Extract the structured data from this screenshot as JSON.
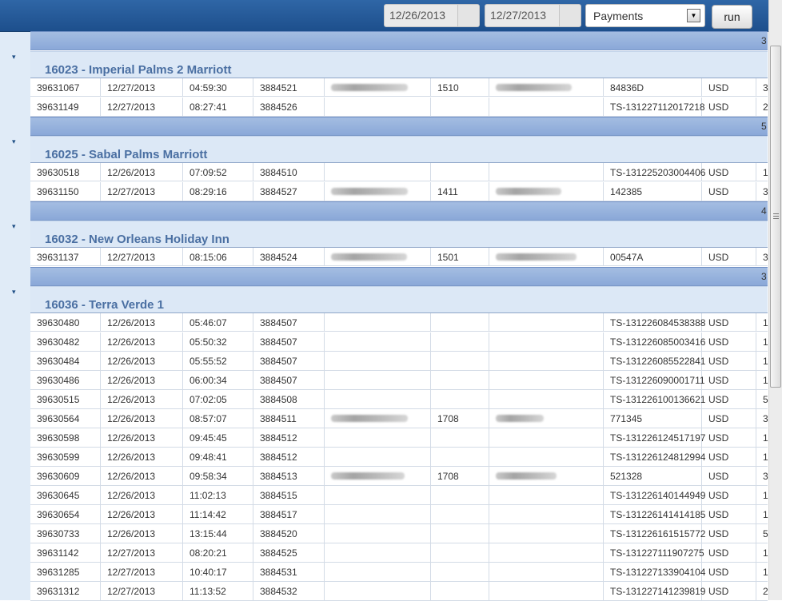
{
  "toolbar": {
    "date_from": "12/26/2013",
    "date_to": "12/27/2013",
    "report_type": "Payments",
    "run_label": "run"
  },
  "top_total": "3",
  "groups": [
    {
      "title": "16023 - Imperial Palms 2 Marriott",
      "total": "5",
      "rows": [
        [
          "39631067",
          "12/27/2013",
          "04:59:30",
          "3884521",
          "[redacted]",
          "1510",
          "[redacted]",
          "84836D",
          "USD",
          "3"
        ],
        [
          "39631149",
          "12/27/2013",
          "08:27:41",
          "3884526",
          "",
          "",
          "",
          "TS-131227112017218",
          "USD",
          "2"
        ]
      ]
    },
    {
      "title": "16025 - Sabal Palms Marriott",
      "total": "4",
      "rows": [
        [
          "39630518",
          "12/26/2013",
          "07:09:52",
          "3884510",
          "",
          "",
          "",
          "TS-131225203004406",
          "USD",
          "1"
        ],
        [
          "39631150",
          "12/27/2013",
          "08:29:16",
          "3884527",
          "[redacted]",
          "1411",
          "[redacted]",
          "142385",
          "USD",
          "3"
        ]
      ]
    },
    {
      "title": "16032 - New Orleans Holiday Inn",
      "total": "3",
      "rows": [
        [
          "39631137",
          "12/27/2013",
          "08:15:06",
          "3884524",
          "[redacted]",
          "1501",
          "[redacted]",
          "00547A",
          "USD",
          "3"
        ]
      ]
    },
    {
      "title": "16036 - Terra Verde 1",
      "total": "",
      "rows": [
        [
          "39630480",
          "12/26/2013",
          "05:46:07",
          "3884507",
          "",
          "",
          "",
          "TS-131226084538388",
          "USD",
          "1"
        ],
        [
          "39630482",
          "12/26/2013",
          "05:50:32",
          "3884507",
          "",
          "",
          "",
          "TS-131226085003416",
          "USD",
          "1"
        ],
        [
          "39630484",
          "12/26/2013",
          "05:55:52",
          "3884507",
          "",
          "",
          "",
          "TS-131226085522841",
          "USD",
          "1"
        ],
        [
          "39630486",
          "12/26/2013",
          "06:00:34",
          "3884507",
          "",
          "",
          "",
          "TS-131226090001711",
          "USD",
          "1"
        ],
        [
          "39630515",
          "12/26/2013",
          "07:02:05",
          "3884508",
          "",
          "",
          "",
          "TS-131226100136621",
          "USD",
          "5"
        ],
        [
          "39630564",
          "12/26/2013",
          "08:57:07",
          "3884511",
          "[redacted]",
          "1708",
          "[redacted]",
          "771345",
          "USD",
          "3"
        ],
        [
          "39630598",
          "12/26/2013",
          "09:45:45",
          "3884512",
          "",
          "",
          "",
          "TS-131226124517197",
          "USD",
          "1"
        ],
        [
          "39630599",
          "12/26/2013",
          "09:48:41",
          "3884512",
          "",
          "",
          "",
          "TS-131226124812994",
          "USD",
          "1"
        ],
        [
          "39630609",
          "12/26/2013",
          "09:58:34",
          "3884513",
          "[redacted]",
          "1708",
          "[redacted]",
          "521328",
          "USD",
          "3"
        ],
        [
          "39630645",
          "12/26/2013",
          "11:02:13",
          "3884515",
          "",
          "",
          "",
          "TS-131226140144949",
          "USD",
          "1"
        ],
        [
          "39630654",
          "12/26/2013",
          "11:14:42",
          "3884517",
          "",
          "",
          "",
          "TS-131226141414185",
          "USD",
          "1"
        ],
        [
          "39630733",
          "12/26/2013",
          "13:15:44",
          "3884520",
          "",
          "",
          "",
          "TS-131226161515772",
          "USD",
          "5"
        ],
        [
          "39631142",
          "12/27/2013",
          "08:20:21",
          "3884525",
          "",
          "",
          "",
          "TS-131227111907275",
          "USD",
          "1"
        ],
        [
          "39631285",
          "12/27/2013",
          "10:40:17",
          "3884531",
          "",
          "",
          "",
          "TS-131227133904104",
          "USD",
          "1"
        ],
        [
          "39631312",
          "12/27/2013",
          "11:13:52",
          "3884532",
          "",
          "",
          "",
          "TS-131227141239819",
          "USD",
          "2"
        ]
      ]
    }
  ]
}
